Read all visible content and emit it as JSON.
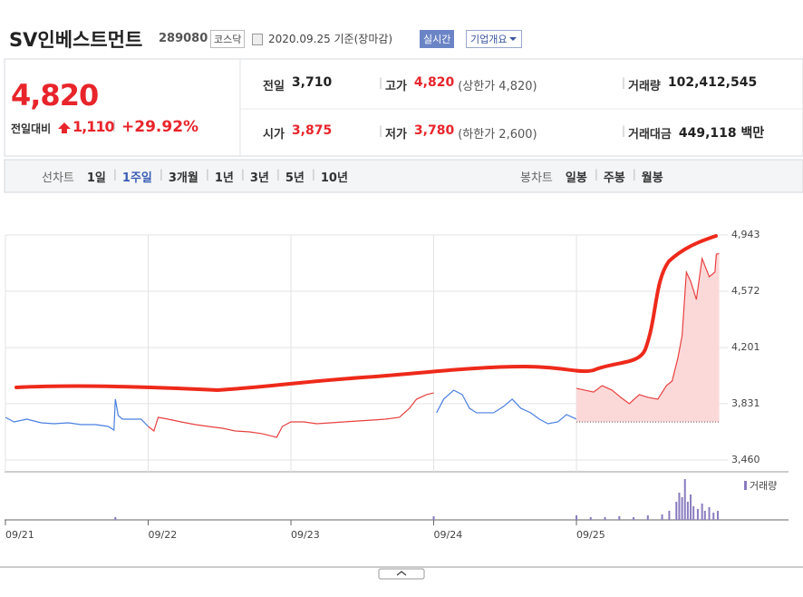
{
  "header": {
    "title": "SV인베스트먼트",
    "code": "289080",
    "market": "코스닥",
    "date": "2020.09.25 기준(장마감)",
    "realtime": "실시간",
    "overview": "기업개요"
  },
  "quote": {
    "price": "4,820",
    "change_label": "전일대비",
    "change": "1,110",
    "change_pct": "+29.92%",
    "rows": [
      [
        {
          "label": "전일",
          "value": "3,710"
        },
        {
          "label": "고가",
          "value": "4,820",
          "note": "(상한가 4,820)"
        },
        {
          "label": "거래량",
          "value": "102,412,545"
        }
      ],
      [
        {
          "label": "시가",
          "value": "3,875"
        },
        {
          "label": "저가",
          "value": "3,780",
          "note": "(하한가 2,600)"
        },
        {
          "label": "거래대금",
          "value": "449,118 백만"
        }
      ]
    ]
  },
  "tabs": {
    "line_label": "선차트",
    "line_periods": [
      "1일",
      "1주일",
      "3개월",
      "1년",
      "3년",
      "5년",
      "10년"
    ],
    "selected": 1,
    "candle_label": "봉차트",
    "candle_periods": [
      "일봉",
      "주봉",
      "월봉"
    ]
  },
  "chart_data": [
    {
      "type": "line",
      "xlim": [
        0,
        5.06
      ],
      "ylim": [
        3382,
        4943
      ],
      "xticks": [
        {
          "value": 0,
          "label": "09/21"
        },
        {
          "value": 1,
          "label": "09/22"
        },
        {
          "value": 2,
          "label": "09/23"
        },
        {
          "value": 3,
          "label": "09/24"
        },
        {
          "value": 4,
          "label": "09/25"
        }
      ],
      "yticks": [
        {
          "value": 3460,
          "label": "3,460"
        },
        {
          "value": 3831,
          "label": "3,831"
        },
        {
          "value": 4201,
          "label": "4,201"
        },
        {
          "value": 4572,
          "label": "4,572"
        },
        {
          "value": 4943,
          "label": "4,943"
        }
      ],
      "grid": true,
      "fill_baseline": 3710,
      "series": [
        {
          "color": "#4a7fe0",
          "x": [
            0,
            0.06,
            0.15,
            0.25,
            0.34,
            0.44,
            0.53,
            0.63,
            0.72,
            0.76,
            0.77,
            0.79,
            0.82,
            0.88,
            0.95,
            1.0
          ],
          "values": [
            3741,
            3711,
            3729,
            3705,
            3699,
            3705,
            3693,
            3693,
            3681,
            3657,
            3861,
            3753,
            3729,
            3729,
            3729,
            3681
          ]
        },
        {
          "color": "#e84040",
          "x": [
            1.0,
            1.04,
            1.07,
            1.14,
            1.23,
            1.33,
            1.42,
            1.52,
            1.61,
            1.71,
            1.8,
            1.9,
            1.94,
            2.0,
            2.09,
            2.18,
            2.28,
            2.37,
            2.47,
            2.57,
            2.66,
            2.76,
            2.83,
            2.88,
            2.95,
            3.0
          ],
          "values": [
            3681,
            3651,
            3741,
            3729,
            3711,
            3693,
            3681,
            3669,
            3651,
            3645,
            3633,
            3609,
            3681,
            3711,
            3711,
            3699,
            3705,
            3711,
            3717,
            3723,
            3729,
            3741,
            3801,
            3861,
            3891,
            3902
          ]
        },
        {
          "color": "#4a7fe0",
          "x": [
            3.02,
            3.07,
            3.14,
            3.2,
            3.25,
            3.3,
            3.36,
            3.42,
            3.49,
            3.55,
            3.61,
            3.68,
            3.74,
            3.8,
            3.87,
            3.93,
            4.0
          ],
          "values": [
            3771,
            3861,
            3920,
            3891,
            3801,
            3771,
            3771,
            3771,
            3813,
            3861,
            3801,
            3771,
            3729,
            3699,
            3711,
            3759,
            3729
          ]
        },
        {
          "color": "#e84040",
          "fill": "#fcd9d9",
          "x": [
            4.0,
            4.06,
            4.12,
            4.18,
            4.25,
            4.31,
            4.37,
            4.44,
            4.5,
            4.57,
            4.63,
            4.67,
            4.71,
            4.74,
            4.77,
            4.8,
            4.84,
            4.88,
            4.93,
            4.97,
            4.98,
            5.0
          ],
          "values": [
            3932,
            3920,
            3908,
            3950,
            3920,
            3873,
            3831,
            3891,
            3873,
            3861,
            3950,
            3980,
            4130,
            4279,
            4698,
            4638,
            4518,
            4788,
            4668,
            4698,
            4817,
            4820
          ]
        }
      ]
    },
    {
      "type": "bar",
      "name": "거래량",
      "color": "#8a7cc0",
      "ylim": [
        0,
        50
      ],
      "x": [
        0.77,
        3.0,
        4.0,
        4.1,
        4.2,
        4.3,
        4.4,
        4.5,
        4.6,
        4.65,
        4.7,
        4.72,
        4.74,
        4.76,
        4.78,
        4.8,
        4.82,
        4.85,
        4.88,
        4.9,
        4.93,
        4.96,
        4.99
      ],
      "values": [
        3,
        4,
        5,
        3,
        3,
        4,
        3,
        5,
        6,
        10,
        20,
        30,
        25,
        45,
        20,
        28,
        15,
        12,
        18,
        10,
        14,
        8,
        10
      ]
    }
  ]
}
